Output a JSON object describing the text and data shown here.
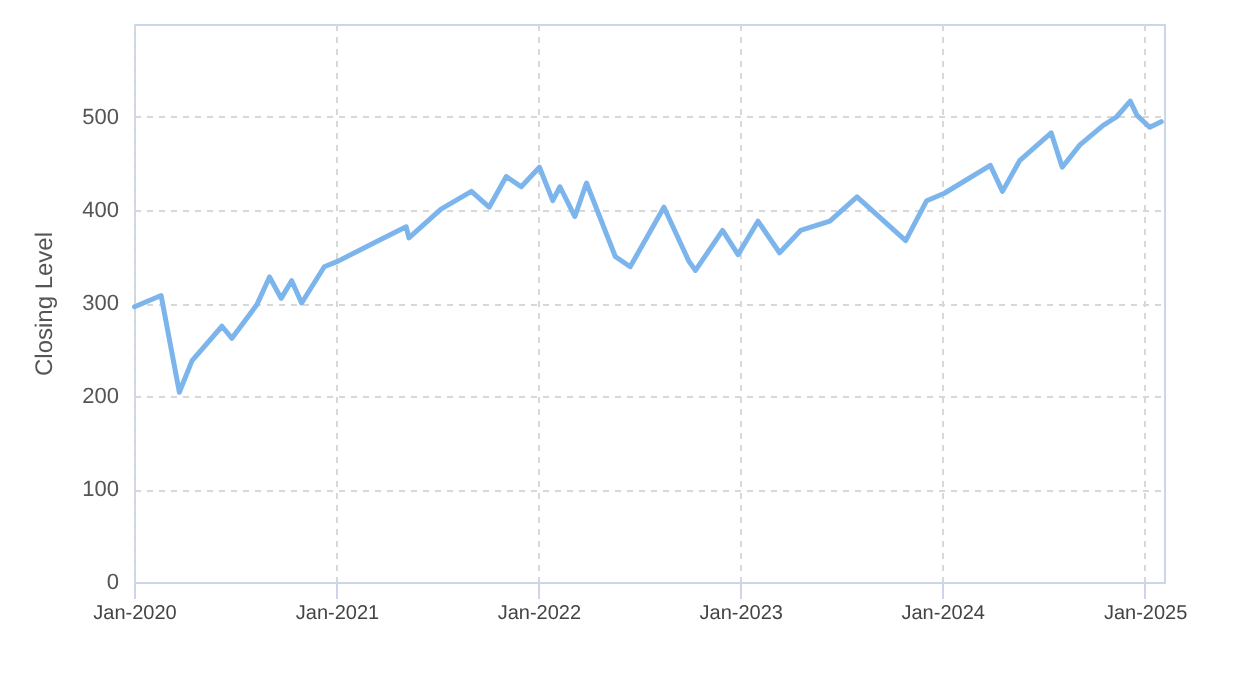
{
  "chart_data": {
    "type": "line",
    "ylabel": "Closing Level",
    "x": [
      "2020-01-02",
      "2020-02-19",
      "2020-03-23",
      "2020-04-15",
      "2020-06-08",
      "2020-06-26",
      "2020-08-10",
      "2020-09-02",
      "2020-09-23",
      "2020-10-12",
      "2020-10-30",
      "2020-12-10",
      "2021-01-04",
      "2021-03-04",
      "2021-05-07",
      "2021-05-12",
      "2021-07-09",
      "2021-09-02",
      "2021-10-04",
      "2021-11-04",
      "2021-12-01",
      "2022-01-03",
      "2022-01-27",
      "2022-02-09",
      "2022-03-08",
      "2022-03-29",
      "2022-05-20",
      "2022-06-16",
      "2022-08-16",
      "2022-09-30",
      "2022-10-12",
      "2022-11-30",
      "2022-12-28",
      "2023-02-02",
      "2023-03-13",
      "2023-04-20",
      "2023-06-12",
      "2023-07-31",
      "2023-10-27",
      "2023-12-04",
      "2024-01-05",
      "2024-03-28",
      "2024-04-19",
      "2024-05-20",
      "2024-07-16",
      "2024-08-05",
      "2024-09-06",
      "2024-10-18",
      "2024-11-11",
      "2024-12-06",
      "2024-12-18",
      "2025-01-10",
      "2025-01-31"
    ],
    "series": [
      {
        "color": "#7cb5ec",
        "values": [
          296,
          308,
          204,
          238,
          275,
          262,
          298,
          328,
          305,
          324,
          300,
          339,
          345,
          363,
          382,
          370,
          401,
          420,
          403,
          436,
          425,
          446,
          410,
          425,
          393,
          429,
          350,
          339,
          403,
          345,
          335,
          378,
          352,
          388,
          354,
          378,
          388,
          414,
          367,
          410,
          418,
          448,
          420,
          453,
          483,
          446,
          470,
          491,
          500,
          517,
          502,
          489,
          495
        ]
      }
    ],
    "xlim": [
      "2020-01-01",
      "2025-02-05"
    ],
    "xticks": [
      {
        "value": "2020-01-01",
        "label": "Jan-2020"
      },
      {
        "value": "2021-01-01",
        "label": "Jan-2021"
      },
      {
        "value": "2022-01-01",
        "label": "Jan-2022"
      },
      {
        "value": "2023-01-01",
        "label": "Jan-2023"
      },
      {
        "value": "2024-01-01",
        "label": "Jan-2024"
      },
      {
        "value": "2025-01-01",
        "label": "Jan-2025"
      }
    ],
    "ylim": [
      0,
      600
    ],
    "yticks": [
      0,
      100,
      200,
      300,
      400,
      500
    ],
    "grid": true,
    "marker": "none",
    "line_style": "solid"
  }
}
